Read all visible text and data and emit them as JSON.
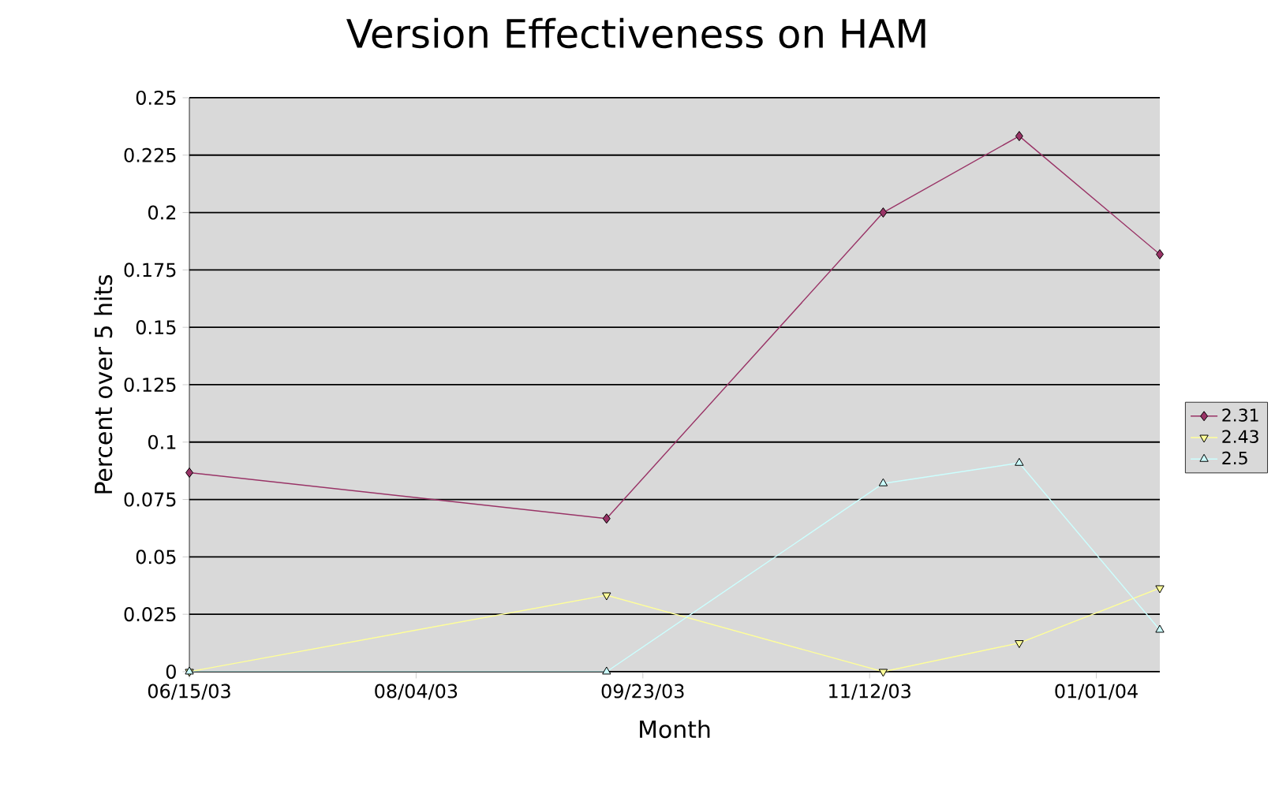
{
  "chart_data": {
    "type": "line",
    "title": "Version Effectiveness on HAM",
    "xlabel": "Month",
    "ylabel": "Percent over 5 hits",
    "x": [
      "2003-06-15",
      "2003-09-15",
      "2003-11-15",
      "2003-12-15",
      "2004-01-15"
    ],
    "series": [
      {
        "name": "2.31",
        "color": "#993366",
        "marker": "diamond",
        "values": [
          0.0867,
          0.0667,
          0.2,
          0.2333,
          0.1818
        ]
      },
      {
        "name": "2.43",
        "color": "#ffff99",
        "marker": "triangle-down",
        "values": [
          0,
          0.0333,
          0,
          0.0125,
          0.0364
        ]
      },
      {
        "name": "2.5",
        "color": "#ccffff",
        "marker": "triangle",
        "values": [
          0,
          0,
          0.082,
          0.0909,
          0.0182
        ]
      }
    ],
    "xlim": [
      "2003-06-15",
      "2004-01-15"
    ],
    "xticks": [
      {
        "value": "2003-06-15",
        "label": "06/15/03"
      },
      {
        "value": "2003-08-04",
        "label": "08/04/03"
      },
      {
        "value": "2003-09-23",
        "label": "09/23/03"
      },
      {
        "value": "2003-11-12",
        "label": "11/12/03"
      },
      {
        "value": "2004-01-01",
        "label": "01/01/04"
      }
    ],
    "ylim": [
      0,
      0.25
    ],
    "yticks": [
      0,
      0.025,
      0.05,
      0.075,
      0.1,
      0.125,
      0.15,
      0.175,
      0.2,
      0.225,
      0.25
    ],
    "grid": "y",
    "legend": "right",
    "line_style": "solid"
  }
}
